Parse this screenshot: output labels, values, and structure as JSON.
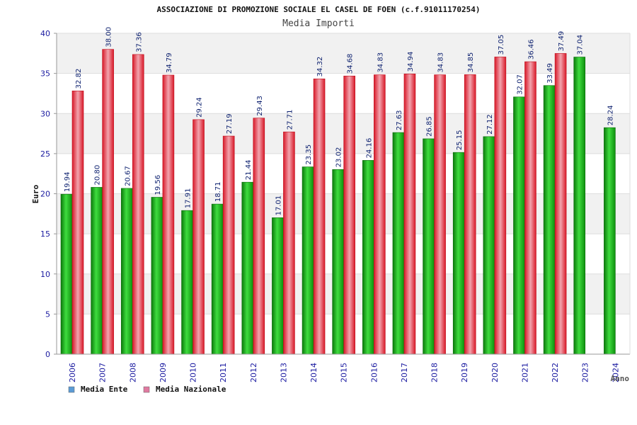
{
  "chart_data": {
    "type": "bar",
    "title": "ASSOCIAZIONE DI PROMOZIONE SOCIALE EL CASEL DE FOEN (c.f.91011170254)",
    "subtitle": "Media Importi",
    "xlabel": "Anno",
    "ylabel": "Euro",
    "ylim": [
      0,
      40
    ],
    "yticks": [
      "0",
      "5",
      "10",
      "15",
      "20",
      "25",
      "30",
      "35",
      "40"
    ],
    "categories": [
      "2006",
      "2007",
      "2008",
      "2009",
      "2010",
      "2011",
      "2012",
      "2013",
      "2014",
      "2015",
      "2016",
      "2017",
      "2018",
      "2019",
      "2020",
      "2021",
      "2022",
      "2023",
      "2024"
    ],
    "series": [
      {
        "name": "Media Ente",
        "color": "#22aa22",
        "values": [
          19.94,
          20.8,
          20.67,
          19.56,
          17.91,
          18.71,
          21.44,
          17.01,
          23.35,
          23.02,
          24.16,
          27.63,
          26.85,
          25.15,
          27.12,
          32.07,
          33.49,
          37.04,
          28.24
        ],
        "labels": [
          "19.94",
          "20.80",
          "20.67",
          "19.56",
          "17.91",
          "18.71",
          "21.44",
          "17.01",
          "23.35",
          "23.02",
          "24.16",
          "27.63",
          "26.85",
          "25.15",
          "27.12",
          "32.07",
          "33.49",
          "37.04",
          "28.24"
        ]
      },
      {
        "name": "Media Nazionale",
        "color": "#ee3344",
        "values": [
          32.82,
          38.0,
          37.36,
          34.79,
          29.24,
          27.19,
          29.43,
          27.71,
          34.32,
          34.68,
          34.83,
          34.94,
          34.83,
          34.85,
          37.05,
          36.46,
          37.49,
          null,
          null
        ],
        "labels": [
          "32.82",
          "38.00",
          "37.36",
          "34.79",
          "29.24",
          "27.19",
          "29.43",
          "27.71",
          "34.32",
          "34.68",
          "34.83",
          "34.94",
          "34.83",
          "34.85",
          "37.05",
          "36.46",
          "37.49",
          null,
          null
        ]
      }
    ],
    "legend": [
      {
        "label": "Media Ente",
        "color": "#5b9bd5"
      },
      {
        "label": "Media Nazionale",
        "color": "#e07aa0"
      }
    ],
    "grid": true,
    "legend_position": "bottom-left"
  }
}
